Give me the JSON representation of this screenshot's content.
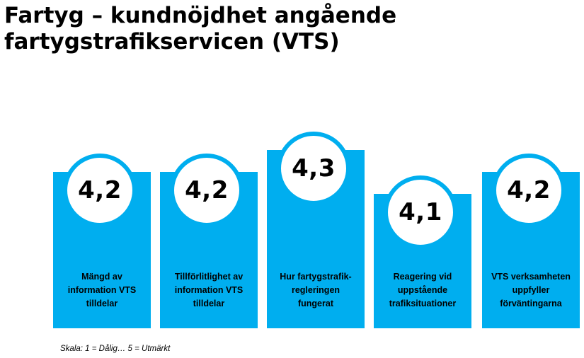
{
  "page": {
    "title_line1": "Fartyg – kundnöjdhet angående",
    "title_line2": "fartygstrafikservicen (VTS)",
    "scale_note": "Skala: 1 = Dålig… 5 = Utmärkt"
  },
  "colors": {
    "bar": "#00aeef",
    "circle_fill": "#ffffff",
    "text": "#000000"
  },
  "chart_data": {
    "type": "bar",
    "categories": [
      "Mängd av information VTS tilldelar",
      "Tillförlitlighet av information VTS tilldelar",
      "Hur fartygstrafik-regleringen fungerat",
      "Reagering vid uppstående trafiksituationer",
      "VTS verksamheten uppfyller förväntingarna"
    ],
    "category_lines": [
      [
        "Mängd av",
        "information VTS",
        "tilldelar"
      ],
      [
        "Tillförlitlighet av",
        "information VTS",
        "tilldelar"
      ],
      [
        "Hur fartygstrafik-",
        "regleringen",
        "fungerat"
      ],
      [
        "Reagering vid",
        "uppstående",
        "trafiksituationer"
      ],
      [
        "VTS verksamheten",
        "uppfyller",
        "förväntingarna"
      ]
    ],
    "values": [
      4.2,
      4.2,
      4.3,
      4.1,
      4.2
    ],
    "value_labels": [
      "4,2",
      "4,2",
      "4,3",
      "4,1",
      "4,2"
    ],
    "title": "Fartyg – kundnöjdhet angående fartygstrafikservicen (VTS)",
    "xlabel": "",
    "ylabel": "",
    "scale_min": 1,
    "scale_max": 5,
    "grid": false,
    "legend": "none"
  }
}
